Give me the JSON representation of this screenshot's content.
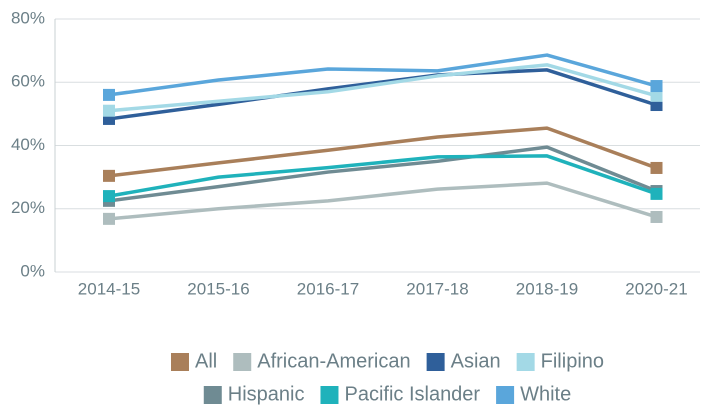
{
  "chart_data": {
    "type": "line",
    "categories": [
      "2014-15",
      "2015-16",
      "2016-17",
      "2017-18",
      "2018-19",
      "2020-21"
    ],
    "series": [
      {
        "name": "All",
        "color": "#a97f5a",
        "values": [
          30.4,
          34.5,
          38.5,
          42.7,
          45.5,
          32.9
        ]
      },
      {
        "name": "African-American",
        "color": "#aebdbe",
        "values": [
          16.8,
          20,
          22.5,
          26.2,
          28.1,
          17.4
        ]
      },
      {
        "name": "Asian",
        "color": "#2f5f9a",
        "values": [
          48.4,
          53,
          57.9,
          62.3,
          63.9,
          52.8
        ]
      },
      {
        "name": "Filipino",
        "color": "#a3d9e6",
        "values": [
          51,
          54,
          57,
          62,
          65.5,
          55.7
        ]
      },
      {
        "name": "Hispanic",
        "color": "#6f8b93",
        "values": [
          22.5,
          27,
          31.6,
          35,
          39.5,
          25.6
        ]
      },
      {
        "name": "Pacific Islander",
        "color": "#1fb2bb",
        "values": [
          24,
          30,
          33,
          36.4,
          36.7,
          24.7
        ]
      },
      {
        "name": "White",
        "color": "#5aa6db",
        "values": [
          56,
          60.7,
          64.2,
          63.6,
          68.6,
          58.8
        ]
      }
    ],
    "ylim": [
      0,
      80
    ],
    "yticks": [
      {
        "value": 0,
        "label": "0%"
      },
      {
        "value": 20,
        "label": "20%"
      },
      {
        "value": 40,
        "label": "40%"
      },
      {
        "value": 60,
        "label": "60%"
      },
      {
        "value": 80,
        "label": "80%"
      }
    ],
    "grid": true,
    "legend": "bottom"
  }
}
